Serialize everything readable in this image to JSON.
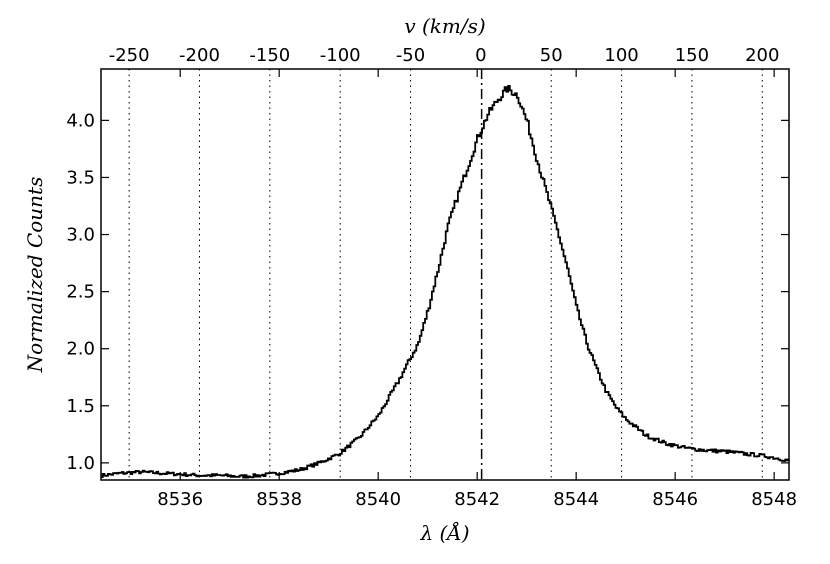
{
  "chart_data": {
    "type": "line",
    "title": "",
    "xlabel": "λ (Å)",
    "ylabel": "Normalized Counts",
    "top_xlabel": "v (km/s)",
    "xlim": [
      8534.4,
      8548.3
    ],
    "ylim": [
      0.85,
      4.45
    ],
    "top_xlim": [
      -270,
      219
    ],
    "grid": "vertical dotted lines at top-axis velocity ticks",
    "center_line_x": 8542.09,
    "x_ticks": [
      8536,
      8538,
      8540,
      8542,
      8544,
      8546,
      8548
    ],
    "x_tick_labels": [
      "8536",
      "8538",
      "8540",
      "8542",
      "8544",
      "8546",
      "8548"
    ],
    "y_ticks": [
      1.0,
      1.5,
      2.0,
      2.5,
      3.0,
      3.5,
      4.0
    ],
    "y_tick_labels": [
      "1.0",
      "1.5",
      "2.0",
      "2.5",
      "3.0",
      "3.5",
      "4.0"
    ],
    "top_ticks": [
      -250,
      -200,
      -150,
      -100,
      -50,
      0,
      50,
      100,
      150,
      200
    ],
    "top_tick_labels": [
      "-250",
      "-200",
      "-150",
      "-100",
      "-50",
      "0",
      "50",
      "100",
      "150",
      "200"
    ],
    "series": [
      {
        "style": "steps",
        "color": "#000000",
        "x": [
          8534.4,
          8534.8,
          8535.2,
          8535.6,
          8536.0,
          8536.4,
          8536.8,
          8537.2,
          8537.6,
          8538.0,
          8538.4,
          8538.8,
          8539.2,
          8539.6,
          8540.0,
          8540.4,
          8540.8,
          8541.0,
          8541.2,
          8541.4,
          8541.6,
          8541.8,
          8542.0,
          8542.2,
          8542.4,
          8542.6,
          8542.8,
          8543.0,
          8543.2,
          8543.4,
          8543.6,
          8543.8,
          8544.0,
          8544.2,
          8544.4,
          8544.6,
          8544.8,
          8545.0,
          8545.4,
          8545.8,
          8546.2,
          8546.6,
          8547.0,
          8547.4,
          8547.8,
          8548.3
        ],
        "y": [
          0.89,
          0.91,
          0.92,
          0.91,
          0.9,
          0.89,
          0.89,
          0.88,
          0.89,
          0.91,
          0.94,
          1.0,
          1.08,
          1.22,
          1.42,
          1.72,
          2.05,
          2.35,
          2.7,
          3.08,
          3.35,
          3.6,
          3.85,
          4.05,
          4.18,
          4.28,
          4.22,
          3.98,
          3.65,
          3.35,
          3.05,
          2.72,
          2.35,
          2.05,
          1.82,
          1.62,
          1.48,
          1.38,
          1.24,
          1.17,
          1.13,
          1.11,
          1.1,
          1.08,
          1.06,
          1.02
        ]
      }
    ]
  }
}
